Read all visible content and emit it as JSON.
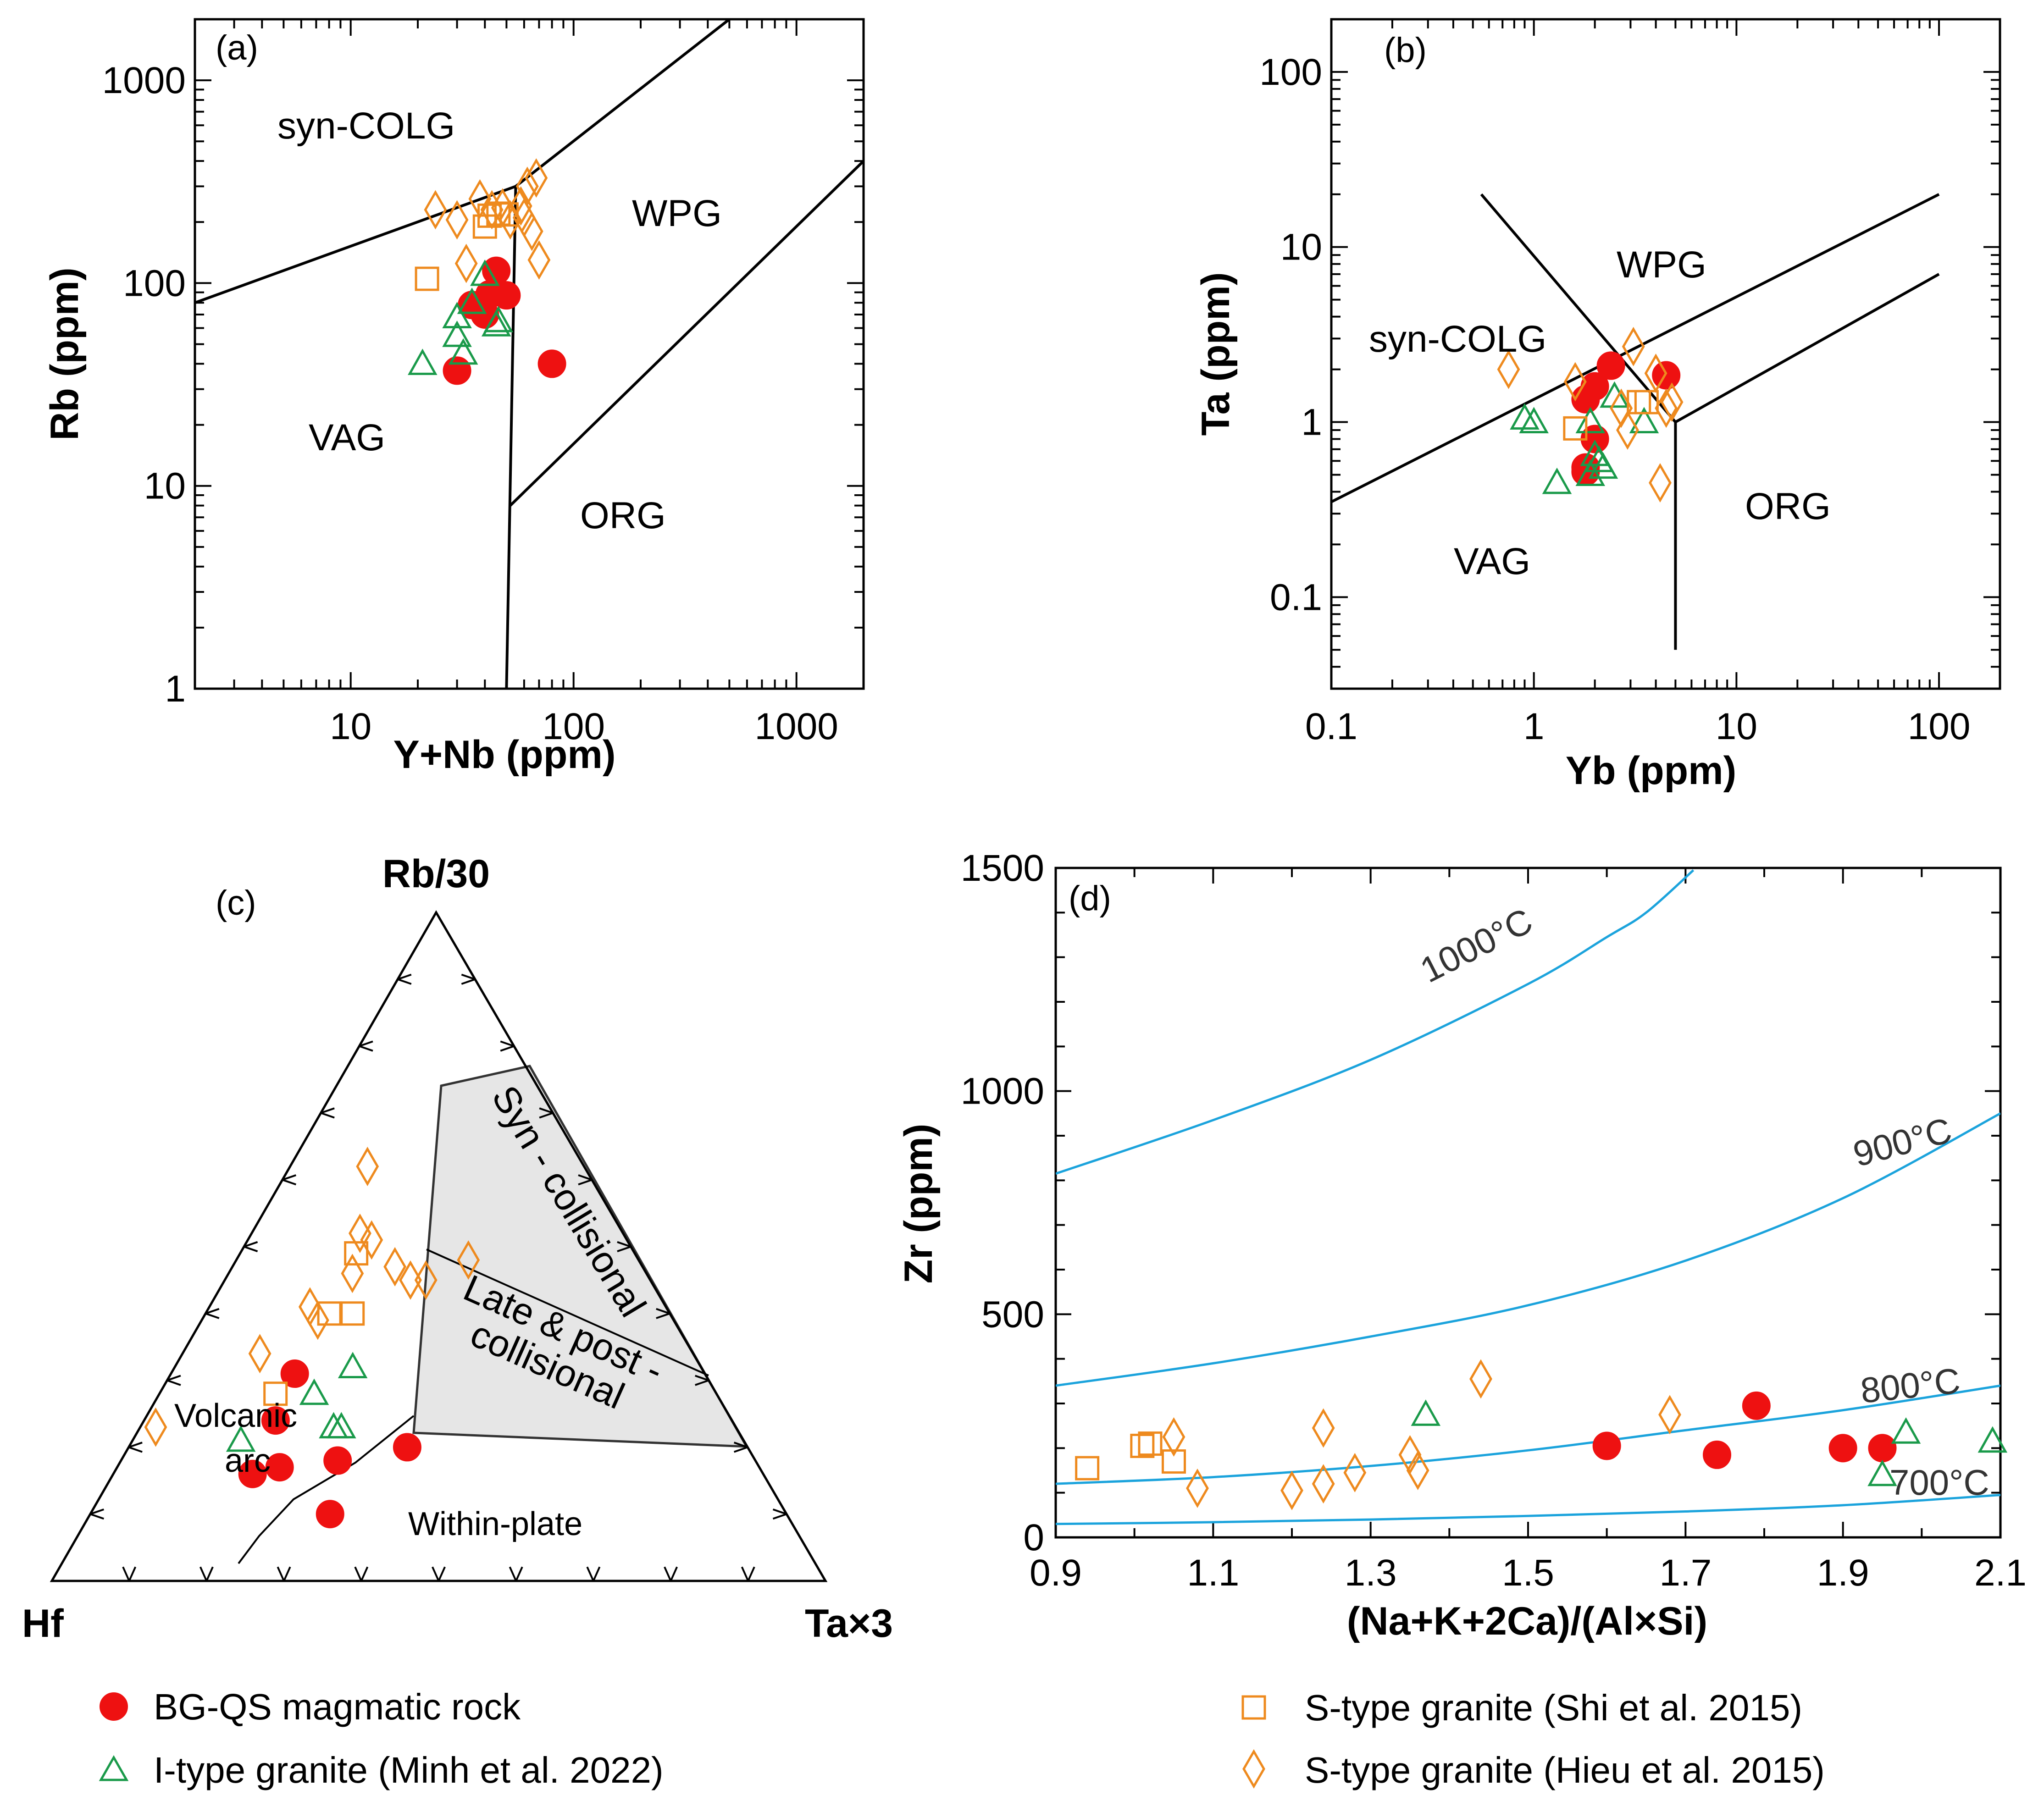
{
  "chart_data": [
    {
      "type": "scatter",
      "panel": "(a)",
      "xlabel": "Y+Nb (ppm)",
      "ylabel": "Rb (ppm)",
      "xscale": "log",
      "yscale": "log",
      "xlim": [
        2,
        2000
      ],
      "ylim": [
        1,
        2000
      ],
      "xticks": [
        "10",
        "100",
        "1000"
      ],
      "yticks": [
        "1",
        "10",
        "100",
        "1000"
      ],
      "regions": [
        "syn-COLG",
        "WPG",
        "VAG",
        "ORG"
      ],
      "boundaries": [
        [
          [
            2,
            80
          ],
          [
            55,
            300
          ]
        ],
        [
          [
            55,
            300
          ],
          [
            500,
            2000
          ]
        ],
        [
          [
            55,
            300
          ],
          [
            50,
            1
          ]
        ],
        [
          [
            52,
            8
          ],
          [
            2000,
            400
          ]
        ]
      ],
      "series": [
        {
          "name": "BG-QS magmatic rock",
          "marker": "circle",
          "points": [
            [
              30,
              37
            ],
            [
              35,
              78
            ],
            [
              40,
              70
            ],
            [
              42,
              88
            ],
            [
              45,
              115
            ],
            [
              50,
              87
            ],
            [
              80,
              40
            ]
          ]
        },
        {
          "name": "I-type granite (Minh et al. 2022)",
          "marker": "triangle",
          "points": [
            [
              21,
              40
            ],
            [
              30,
              55
            ],
            [
              30,
              68
            ],
            [
              32,
              45
            ],
            [
              35,
              80
            ],
            [
              40,
              110
            ],
            [
              45,
              62
            ],
            [
              46,
              65
            ]
          ]
        },
        {
          "name": "S-type granite (Shi et al. 2015)",
          "marker": "square",
          "points": [
            [
              22,
              105
            ],
            [
              40,
              190
            ],
            [
              42,
              215
            ],
            [
              46,
              220
            ],
            [
              50,
              218
            ]
          ]
        },
        {
          "name": "S-type granite (Hieu et al. 2015)",
          "marker": "diamond",
          "points": [
            [
              24,
              230
            ],
            [
              30,
              205
            ],
            [
              33,
              125
            ],
            [
              38,
              260
            ],
            [
              43,
              230
            ],
            [
              48,
              235
            ],
            [
              52,
              205
            ],
            [
              58,
              240
            ],
            [
              62,
              300
            ],
            [
              65,
              180
            ],
            [
              68,
              330
            ],
            [
              70,
              130
            ],
            [
              60,
              210
            ]
          ]
        }
      ]
    },
    {
      "type": "scatter",
      "panel": "(b)",
      "xlabel": "Yb (ppm)",
      "ylabel": "Ta (ppm)",
      "xscale": "log",
      "yscale": "log",
      "xlim": [
        0.1,
        200
      ],
      "ylim": [
        0.03,
        200
      ],
      "xticks": [
        "0.1",
        "1",
        "10",
        "100"
      ],
      "yticks": [
        "0.1",
        "1",
        "10",
        "100"
      ],
      "regions": [
        "WPG",
        "syn-COLG",
        "VAG",
        "ORG"
      ],
      "boundaries": [
        [
          [
            0.55,
            20
          ],
          [
            3,
            2
          ]
        ],
        [
          [
            0.1,
            0.35
          ],
          [
            100,
            20
          ]
        ],
        [
          [
            3,
            2
          ],
          [
            5,
            1
          ]
        ],
        [
          [
            5,
            1
          ],
          [
            5,
            0.05
          ]
        ],
        [
          [
            5,
            1
          ],
          [
            100,
            7
          ]
        ]
      ],
      "series": [
        {
          "name": "BG-QS magmatic rock",
          "marker": "circle",
          "points": [
            [
              1.8,
              0.52
            ],
            [
              1.8,
              0.55
            ],
            [
              1.8,
              1.35
            ],
            [
              2.0,
              0.8
            ],
            [
              2.0,
              1.6
            ],
            [
              2.4,
              2.1
            ],
            [
              4.5,
              1.85
            ]
          ]
        },
        {
          "name": "I-type granite (Minh et al. 2022)",
          "marker": "triangle",
          "points": [
            [
              0.9,
              1.05
            ],
            [
              1.0,
              1.0
            ],
            [
              1.3,
              0.45
            ],
            [
              1.9,
              0.5
            ],
            [
              2.0,
              0.65
            ],
            [
              2.1,
              0.6
            ],
            [
              2.2,
              0.55
            ],
            [
              2.5,
              1.4
            ],
            [
              3.5,
              1.0
            ],
            [
              1.9,
              1.0
            ]
          ]
        },
        {
          "name": "S-type granite (Shi et al. 2015)",
          "marker": "square",
          "points": [
            [
              1.6,
              0.92
            ],
            [
              3.3,
              1.3
            ],
            [
              3.6,
              1.3
            ]
          ]
        },
        {
          "name": "S-type granite (Hieu et al. 2015)",
          "marker": "diamond",
          "points": [
            [
              0.75,
              2.0
            ],
            [
              1.6,
              1.7
            ],
            [
              2.7,
              1.2
            ],
            [
              2.9,
              0.9
            ],
            [
              3.1,
              2.7
            ],
            [
              4.0,
              1.9
            ],
            [
              4.2,
              0.45
            ],
            [
              4.5,
              1.2
            ],
            [
              4.8,
              1.3
            ]
          ]
        }
      ]
    },
    {
      "type": "ternary",
      "panel": "(c)",
      "apex_top": "Rb/30",
      "apex_left": "Hf",
      "apex_right": "Ta×3",
      "region_labels": {
        "syn": "Syn - collisional",
        "late_line1": "Late & post -",
        "late_line2": "collisional",
        "volcanic_line1": "Volcanic",
        "volcanic_line2": "arc",
        "within": "Within-plate"
      },
      "series": [
        {
          "name": "BG-QS magmatic rock",
          "marker": "circle",
          "points": [
            [
              0.31,
              0.53,
              0.16
            ],
            [
              0.24,
              0.59,
              0.17
            ],
            [
              0.17,
              0.62,
              0.21
            ],
            [
              0.16,
              0.66,
              0.18
            ],
            [
              0.18,
              0.54,
              0.28
            ],
            [
              0.2,
              0.44,
              0.36
            ],
            [
              0.1,
              0.59,
              0.31
            ]
          ]
        },
        {
          "name": "I-type granite (Minh et al. 2022)",
          "marker": "triangle",
          "points": [
            [
              0.28,
              0.52,
              0.2
            ],
            [
              0.32,
              0.45,
              0.23
            ],
            [
              0.23,
              0.52,
              0.25
            ],
            [
              0.21,
              0.65,
              0.14
            ],
            [
              0.23,
              0.51,
              0.26
            ]
          ]
        },
        {
          "name": "S-type granite (Shi et al. 2015)",
          "marker": "square",
          "points": [
            [
              0.28,
              0.57,
              0.15
            ],
            [
              0.4,
              0.44,
              0.16
            ],
            [
              0.4,
              0.41,
              0.19
            ],
            [
              0.49,
              0.36,
              0.15
            ]
          ]
        },
        {
          "name": "S-type granite (Hieu et al. 2015)",
          "marker": "diamond",
          "points": [
            [
              0.23,
              0.75,
              0.02
            ],
            [
              0.34,
              0.56,
              0.1
            ],
            [
              0.39,
              0.46,
              0.15
            ],
            [
              0.41,
              0.46,
              0.13
            ],
            [
              0.46,
              0.38,
              0.16
            ],
            [
              0.52,
              0.34,
              0.14
            ],
            [
              0.51,
              0.33,
              0.16
            ],
            [
              0.47,
              0.32,
              0.21
            ],
            [
              0.45,
              0.31,
              0.24
            ],
            [
              0.45,
              0.29,
              0.26
            ],
            [
              0.48,
              0.22,
              0.3
            ],
            [
              0.62,
              0.28,
              0.1
            ]
          ]
        }
      ]
    },
    {
      "type": "scatter",
      "panel": "(d)",
      "xlabel": "(Na+K+2Ca)/(Al×Si)",
      "ylabel": "Zr (ppm)",
      "xlim": [
        0.9,
        2.1
      ],
      "ylim": [
        0,
        1500
      ],
      "xticks": [
        "0.9",
        "1.1",
        "1.3",
        "1.5",
        "1.7",
        "1.9",
        "2.1"
      ],
      "yticks": [
        "0",
        "500",
        "1000",
        "1500"
      ],
      "isotherms": [
        {
          "label": "1000°C",
          "points": [
            [
              0.9,
              815
            ],
            [
              1.1,
              935
            ],
            [
              1.3,
              1070
            ],
            [
              1.5,
              1240
            ],
            [
              1.6,
              1345
            ],
            [
              1.65,
              1400
            ],
            [
              1.71,
              1495
            ]
          ]
        },
        {
          "label": "900°C",
          "points": [
            [
              0.9,
              340
            ],
            [
              1.1,
              390
            ],
            [
              1.3,
              450
            ],
            [
              1.5,
              520
            ],
            [
              1.7,
              620
            ],
            [
              1.9,
              760
            ],
            [
              2.1,
              950
            ]
          ]
        },
        {
          "label": "800°C",
          "points": [
            [
              0.9,
              120
            ],
            [
              1.1,
              135
            ],
            [
              1.3,
              160
            ],
            [
              1.5,
              195
            ],
            [
              1.7,
              240
            ],
            [
              1.9,
              285
            ],
            [
              2.1,
              340
            ]
          ]
        },
        {
          "label": "700°C",
          "points": [
            [
              0.9,
              30
            ],
            [
              1.1,
              34
            ],
            [
              1.3,
              40
            ],
            [
              1.5,
              48
            ],
            [
              1.7,
              58
            ],
            [
              1.9,
              72
            ],
            [
              2.1,
              95
            ]
          ]
        }
      ],
      "series": [
        {
          "name": "BG-QS magmatic rock",
          "marker": "circle",
          "points": [
            [
              1.6,
              205
            ],
            [
              1.74,
              185
            ],
            [
              1.79,
              295
            ],
            [
              1.9,
              200
            ],
            [
              1.95,
              200
            ]
          ]
        },
        {
          "name": "I-type granite (Minh et al. 2022)",
          "marker": "triangle",
          "points": [
            [
              1.37,
              275
            ],
            [
              1.95,
              140
            ],
            [
              1.98,
              235
            ],
            [
              2.09,
              215
            ]
          ]
        },
        {
          "name": "S-type granite (Shi et al. 2015)",
          "marker": "square",
          "points": [
            [
              0.94,
              155
            ],
            [
              1.01,
              205
            ],
            [
              1.02,
              210
            ],
            [
              1.05,
              170
            ]
          ]
        },
        {
          "name": "S-type granite (Hieu et al. 2015)",
          "marker": "diamond",
          "points": [
            [
              1.05,
              225
            ],
            [
              1.08,
              110
            ],
            [
              1.2,
              105
            ],
            [
              1.24,
              120
            ],
            [
              1.24,
              245
            ],
            [
              1.28,
              145
            ],
            [
              1.35,
              185
            ],
            [
              1.36,
              150
            ],
            [
              1.44,
              355
            ],
            [
              1.68,
              275
            ]
          ]
        }
      ]
    }
  ],
  "legend": {
    "bgqs": "BG-QS magmatic rock",
    "itype": "I-type granite (Minh et al. 2022)",
    "shi": "S-type granite (Shi et al. 2015)",
    "hieu": "S-type granite (Hieu et al. 2015)"
  },
  "colors": {
    "bgqs": "#ee1111",
    "itype": "#1a9a4a",
    "stype": "#ee8a1e",
    "isotherm": "#1ba3dc",
    "field": "#e6e6e6"
  }
}
